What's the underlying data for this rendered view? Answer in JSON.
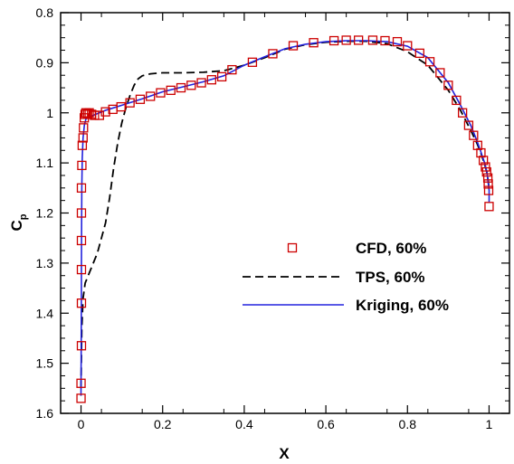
{
  "chart_data": {
    "type": "line",
    "title": "",
    "xlabel": "X",
    "ylabel": "C",
    "ylabel_subscript": "p",
    "xlim": [
      -0.05,
      1.05
    ],
    "ylim": [
      1.6,
      0.8
    ],
    "y_inverted": true,
    "xticks": [
      "0",
      "0.2",
      "0.4",
      "0.6",
      "0.8",
      "1"
    ],
    "yticks": [
      "0.8",
      "0.9",
      "1",
      "1.1",
      "1.2",
      "1.3",
      "1.4",
      "1.5",
      "1.6"
    ],
    "grid": false,
    "legend_position": "center-right",
    "series": [
      {
        "name": "CFD, 60%",
        "style": "square-markers",
        "color": "#cc0000",
        "points": [
          [
            0.0,
            1.57
          ],
          [
            0.0,
            1.54
          ],
          [
            0.001,
            1.465
          ],
          [
            0.001,
            1.38
          ],
          [
            0.001,
            1.313
          ],
          [
            0.001,
            1.255
          ],
          [
            0.001,
            1.2
          ],
          [
            0.001,
            1.15
          ],
          [
            0.002,
            1.105
          ],
          [
            0.003,
            1.065
          ],
          [
            0.005,
            1.05
          ],
          [
            0.006,
            1.03
          ],
          [
            0.008,
            1.01
          ],
          [
            0.01,
            1.003
          ],
          [
            0.012,
            1.0
          ],
          [
            0.016,
            1.002
          ],
          [
            0.02,
            1.0
          ],
          [
            0.026,
            1.003
          ],
          [
            0.033,
            1.005
          ],
          [
            0.045,
            1.005
          ],
          [
            0.06,
            0.998
          ],
          [
            0.078,
            0.993
          ],
          [
            0.098,
            0.988
          ],
          [
            0.12,
            0.98
          ],
          [
            0.145,
            0.973
          ],
          [
            0.17,
            0.967
          ],
          [
            0.195,
            0.96
          ],
          [
            0.22,
            0.955
          ],
          [
            0.245,
            0.95
          ],
          [
            0.27,
            0.945
          ],
          [
            0.295,
            0.94
          ],
          [
            0.32,
            0.934
          ],
          [
            0.345,
            0.928
          ],
          [
            0.37,
            0.914
          ],
          [
            0.42,
            0.899
          ],
          [
            0.47,
            0.882
          ],
          [
            0.52,
            0.866
          ],
          [
            0.57,
            0.86
          ],
          [
            0.62,
            0.856
          ],
          [
            0.65,
            0.855
          ],
          [
            0.68,
            0.855
          ],
          [
            0.715,
            0.855
          ],
          [
            0.745,
            0.856
          ],
          [
            0.775,
            0.858
          ],
          [
            0.8,
            0.866
          ],
          [
            0.83,
            0.881
          ],
          [
            0.855,
            0.898
          ],
          [
            0.88,
            0.92
          ],
          [
            0.9,
            0.945
          ],
          [
            0.92,
            0.975
          ],
          [
            0.935,
            1.0
          ],
          [
            0.95,
            1.025
          ],
          [
            0.962,
            1.045
          ],
          [
            0.972,
            1.065
          ],
          [
            0.98,
            1.08
          ],
          [
            0.986,
            1.095
          ],
          [
            0.991,
            1.108
          ],
          [
            0.994,
            1.118
          ],
          [
            0.997,
            1.13
          ],
          [
            0.998,
            1.142
          ],
          [
            0.999,
            1.155
          ],
          [
            1.0,
            1.187
          ]
        ]
      },
      {
        "name": "TPS, 60%",
        "style": "dashed",
        "color": "#000000",
        "points": [
          [
            0.0,
            1.55
          ],
          [
            0.002,
            1.43
          ],
          [
            0.005,
            1.37
          ],
          [
            0.01,
            1.34
          ],
          [
            0.02,
            1.32
          ],
          [
            0.03,
            1.3
          ],
          [
            0.04,
            1.28
          ],
          [
            0.05,
            1.25
          ],
          [
            0.06,
            1.22
          ],
          [
            0.07,
            1.17
          ],
          [
            0.08,
            1.11
          ],
          [
            0.09,
            1.06
          ],
          [
            0.1,
            1.02
          ],
          [
            0.11,
            0.99
          ],
          [
            0.12,
            0.965
          ],
          [
            0.13,
            0.945
          ],
          [
            0.14,
            0.932
          ],
          [
            0.15,
            0.926
          ],
          [
            0.17,
            0.922
          ],
          [
            0.2,
            0.92
          ],
          [
            0.25,
            0.92
          ],
          [
            0.3,
            0.919
          ],
          [
            0.35,
            0.916
          ],
          [
            0.4,
            0.905
          ],
          [
            0.45,
            0.89
          ],
          [
            0.5,
            0.873
          ],
          [
            0.55,
            0.864
          ],
          [
            0.6,
            0.859
          ],
          [
            0.65,
            0.857
          ],
          [
            0.7,
            0.857
          ],
          [
            0.75,
            0.862
          ],
          [
            0.8,
            0.878
          ],
          [
            0.85,
            0.905
          ],
          [
            0.9,
            0.955
          ],
          [
            0.93,
            0.995
          ],
          [
            0.955,
            1.035
          ],
          [
            0.97,
            1.06
          ],
          [
            0.98,
            1.08
          ],
          [
            0.99,
            1.105
          ],
          [
            0.995,
            1.12
          ],
          [
            1.0,
            1.15
          ]
        ]
      },
      {
        "name": "Kriging, 60%",
        "style": "solid",
        "color": "#2222dd",
        "points": [
          [
            0.0,
            1.565
          ],
          [
            0.0003,
            1.48
          ],
          [
            0.0007,
            1.38
          ],
          [
            0.001,
            1.3
          ],
          [
            0.0015,
            1.22
          ],
          [
            0.002,
            1.15
          ],
          [
            0.003,
            1.09
          ],
          [
            0.005,
            1.05
          ],
          [
            0.008,
            1.025
          ],
          [
            0.012,
            1.012
          ],
          [
            0.02,
            1.008
          ],
          [
            0.03,
            1.005
          ],
          [
            0.045,
            1.0
          ],
          [
            0.06,
            0.995
          ],
          [
            0.08,
            0.99
          ],
          [
            0.1,
            0.985
          ],
          [
            0.15,
            0.972
          ],
          [
            0.2,
            0.958
          ],
          [
            0.25,
            0.948
          ],
          [
            0.3,
            0.938
          ],
          [
            0.35,
            0.926
          ],
          [
            0.4,
            0.905
          ],
          [
            0.45,
            0.888
          ],
          [
            0.5,
            0.872
          ],
          [
            0.55,
            0.863
          ],
          [
            0.6,
            0.858
          ],
          [
            0.65,
            0.856
          ],
          [
            0.7,
            0.856
          ],
          [
            0.75,
            0.858
          ],
          [
            0.8,
            0.867
          ],
          [
            0.85,
            0.89
          ],
          [
            0.9,
            0.94
          ],
          [
            0.93,
            0.985
          ],
          [
            0.955,
            1.025
          ],
          [
            0.97,
            1.055
          ],
          [
            0.98,
            1.078
          ],
          [
            0.99,
            1.102
          ],
          [
            0.995,
            1.12
          ],
          [
            1.0,
            1.155
          ],
          [
            1.0,
            1.18
          ]
        ]
      }
    ]
  }
}
